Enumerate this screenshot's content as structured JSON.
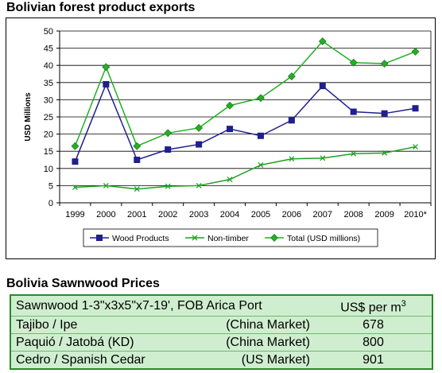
{
  "chart_data": {
    "type": "line",
    "title": "Bolivian forest product exports",
    "ylabel": "USD Millions",
    "xlabel": "",
    "ylim": [
      0,
      50
    ],
    "yticks": [
      0,
      5,
      10,
      15,
      20,
      25,
      30,
      35,
      40,
      45,
      50
    ],
    "grid": true,
    "legend_position": "bottom",
    "categories": [
      "1999",
      "2000",
      "2001",
      "2002",
      "2003",
      "2004",
      "2005",
      "2006",
      "2007",
      "2008",
      "2009",
      "2010*"
    ],
    "series": [
      {
        "name": "Wood Products",
        "color": "#1f1f8f",
        "marker": "square",
        "values": [
          12,
          34.5,
          12.5,
          15.5,
          17,
          21.5,
          19.5,
          24,
          34,
          26.5,
          26,
          27.5
        ]
      },
      {
        "name": "Non-timber",
        "color": "#22a022",
        "marker": "x",
        "values": [
          4.5,
          5,
          4,
          4.8,
          5,
          6.8,
          11,
          12.8,
          13,
          14.3,
          14.5,
          16.3
        ]
      },
      {
        "name": "Total (USD millions)",
        "color": "#22b022",
        "marker": "diamond",
        "values": [
          16.5,
          39.5,
          16.5,
          20.3,
          21.8,
          28.3,
          30.5,
          36.8,
          47,
          40.8,
          40.5,
          44
        ]
      }
    ]
  },
  "table": {
    "title": "Bolivia Sawnwood Prices",
    "header": {
      "name": "Sawnwood 1-3\"x3x5\"x7-19', FOB Arica Port",
      "price_label": "US$ per m",
      "price_exp": "3"
    },
    "rows": [
      {
        "name": "Tajibo / Ipe",
        "market": "(China Market)",
        "price": "678"
      },
      {
        "name": "Paquió / Jatobá (KD)",
        "market": "(China Market)",
        "price": "800"
      },
      {
        "name": "Cedro / Spanish Cedar",
        "market": "(US Market)",
        "price": "901"
      }
    ]
  }
}
